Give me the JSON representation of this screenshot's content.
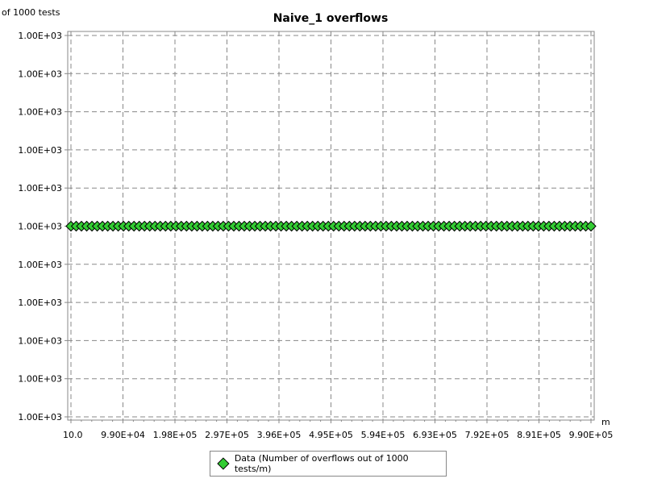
{
  "chart_data": {
    "type": "scatter",
    "title": "Naive_1 overflows",
    "ylabel": "of 1000 tests",
    "xlabel": "m",
    "x_ticks": [
      "10.0",
      "9.90E+04",
      "1.98E+05",
      "2.97E+05",
      "3.96E+05",
      "4.95E+05",
      "5.94E+05",
      "6.93E+05",
      "7.92E+05",
      "8.91E+05",
      "9.90E+05"
    ],
    "y_ticks": [
      "1.00E+03",
      "1.00E+03",
      "1.00E+03",
      "1.00E+03",
      "1.00E+03",
      "1.00E+03",
      "1.00E+03",
      "1.00E+03",
      "1.00E+03",
      "1.00E+03",
      "1.00E+03"
    ],
    "xlim": [
      10,
      990000
    ],
    "grid": true,
    "legend_position": "bottom",
    "series": [
      {
        "name": "Data (Number of overflows out of 1000 tests/m)",
        "color": "#33cc33",
        "marker": "diamond",
        "x_start": 10,
        "x_step": 10000,
        "count": 100,
        "y": 1000
      }
    ]
  }
}
